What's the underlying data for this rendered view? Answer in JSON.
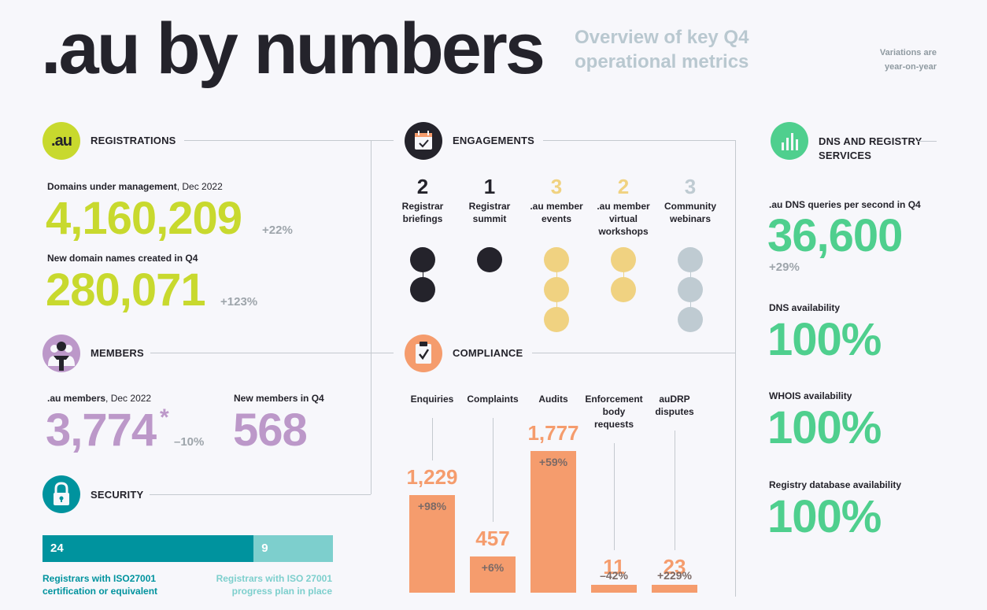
{
  "header": {
    "title": ".au by numbers",
    "subtitle_line1": "Overview of key Q4",
    "subtitle_line2": "operational metrics",
    "variation_line1": "Variations are",
    "variation_line2": "year-on-year"
  },
  "registrations": {
    "icon_text": ".au",
    "heading": "REGISTRATIONS",
    "domains_label": "Domains under management",
    "domains_date": ", Dec 2022",
    "domains_value": "4,160,209",
    "domains_delta": "+22%",
    "new_label": "New domain names created in Q4",
    "new_value": "280,071",
    "new_delta": "+123%"
  },
  "members": {
    "heading": "MEMBERS",
    "au_label": ".au members",
    "au_date": ", Dec 2022",
    "au_value": "3,774",
    "au_asterisk": "*",
    "au_delta": "–10%",
    "new_label": "New members in Q4",
    "new_value": "568"
  },
  "security": {
    "heading": "SECURITY",
    "iso_count": "24",
    "progress_count": "9",
    "iso_fraction": 0.727,
    "iso_label_line1": "Registrars with ISO27001",
    "iso_label_line2": "certification or equivalent",
    "progress_label_line1": "Registrars with ISO 27001",
    "progress_label_line2": "progress plan in place",
    "iso_color": "#00939e",
    "progress_color": "#7dcfcd"
  },
  "engagements": {
    "heading": "ENGAGEMENTS",
    "items": [
      {
        "count": "2",
        "n": 2,
        "line1": "Registrar",
        "line2": "briefings",
        "line3": "",
        "color": "#24232b"
      },
      {
        "count": "1",
        "n": 1,
        "line1": "Registrar",
        "line2": "summit",
        "line3": "",
        "color": "#24232b"
      },
      {
        "count": "3",
        "n": 3,
        "line1": ".au member",
        "line2": "events",
        "line3": "",
        "color": "#f0d281"
      },
      {
        "count": "2",
        "n": 2,
        "line1": ".au member",
        "line2": "virtual",
        "line3": "workshops",
        "color": "#f0d281"
      },
      {
        "count": "3",
        "n": 3,
        "line1": "Community",
        "line2": "webinars",
        "line3": "",
        "color": "#bfcbd2"
      }
    ]
  },
  "compliance": {
    "heading": "COMPLIANCE",
    "chart_data": {
      "type": "bar",
      "categories": [
        "Enquiries",
        "Complaints",
        "Audits",
        "Enforcement body requests",
        "auDRP disputes"
      ],
      "values": [
        1229,
        457,
        1777,
        11,
        23
      ],
      "value_labels": [
        "1,229",
        "457",
        "1,777",
        "11",
        "23"
      ],
      "deltas": [
        "+98%",
        "+6%",
        "+59%",
        "–42%",
        "+229%"
      ],
      "label_lines": [
        [
          "Enquiries"
        ],
        [
          "Complaints"
        ],
        [
          "Audits"
        ],
        [
          "Enforcement",
          "body",
          "requests"
        ],
        [
          "auDRP",
          "disputes"
        ]
      ]
    }
  },
  "dns": {
    "heading_line1": "DNS AND REGISTRY",
    "heading_line2": "SERVICES",
    "queries_label": ".au DNS queries per second in Q4",
    "queries_value": "36,600",
    "queries_delta": "+29%",
    "dns_avail_label": "DNS availability",
    "dns_avail_value": "100%",
    "whois_label": "WHOIS availability",
    "whois_value": "100%",
    "registry_label": "Registry database availability",
    "registry_value": "100%"
  }
}
